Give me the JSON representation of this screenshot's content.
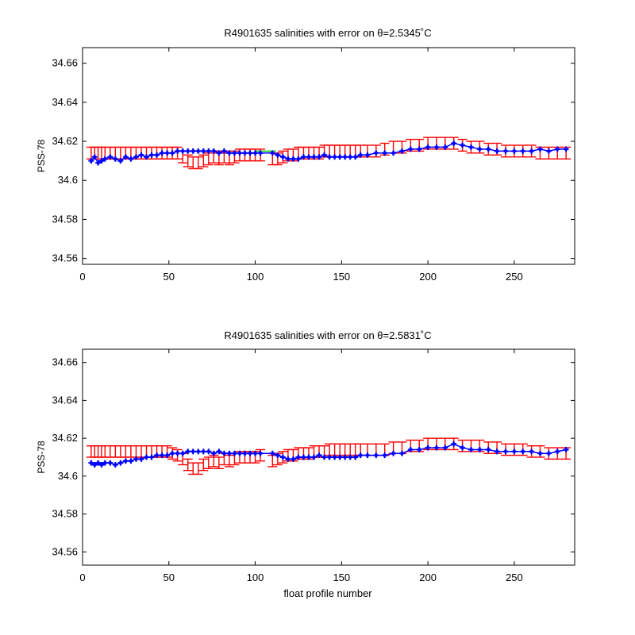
{
  "figure": {
    "xlabel": "float profile number"
  },
  "chart_data": [
    {
      "type": "scatter",
      "title": "R4901635 salinities with error on θ=2.5345˚C",
      "ylabel": "PSS-78",
      "xlabel": "",
      "xlim": [
        0,
        285
      ],
      "ylim": [
        34.557,
        34.668
      ],
      "xticks": [
        0,
        50,
        100,
        150,
        200,
        250
      ],
      "yticks": [
        34.56,
        34.58,
        34.6,
        34.62,
        34.64,
        34.66
      ],
      "ytick_labels": [
        "34.56",
        "34.58",
        "34.6",
        "34.62",
        "34.64",
        "34.66"
      ],
      "grid": false,
      "colors": {
        "measured": "#0000ff",
        "calibrated": "#ff0000",
        "mapped": "#00cc00"
      },
      "series": [
        {
          "role": "measured",
          "x": [
            5,
            7,
            9,
            11,
            13,
            16,
            19,
            22,
            25,
            28,
            31,
            34,
            37,
            40,
            43,
            46,
            49,
            52,
            55,
            58,
            61,
            64,
            67,
            70,
            73,
            76,
            79,
            82,
            85,
            88,
            91,
            94,
            97,
            100,
            103,
            110,
            113,
            116,
            119,
            122,
            125,
            128,
            131,
            134,
            137,
            140,
            143,
            146,
            149,
            152,
            155,
            158,
            161,
            165,
            170,
            175,
            180,
            185,
            190,
            195,
            200,
            205,
            210,
            215,
            220,
            225,
            230,
            235,
            240,
            245,
            250,
            255,
            260,
            265,
            270,
            275,
            280
          ],
          "y": [
            34.61,
            34.612,
            34.609,
            34.61,
            34.611,
            34.612,
            34.611,
            34.61,
            34.612,
            34.611,
            34.612,
            34.613,
            34.612,
            34.613,
            34.613,
            34.614,
            34.614,
            34.614,
            34.615,
            34.615,
            34.615,
            34.615,
            34.615,
            34.615,
            34.615,
            34.615,
            34.614,
            34.615,
            34.614,
            34.614,
            34.614,
            34.614,
            34.614,
            34.614,
            34.614,
            34.614,
            34.613,
            34.612,
            34.611,
            34.611,
            34.611,
            34.612,
            34.612,
            34.612,
            34.612,
            34.613,
            34.612,
            34.612,
            34.612,
            34.612,
            34.612,
            34.612,
            34.613,
            34.613,
            34.614,
            34.614,
            34.614,
            34.615,
            34.616,
            34.616,
            34.617,
            34.617,
            34.617,
            34.619,
            34.618,
            34.617,
            34.616,
            34.616,
            34.615,
            34.615,
            34.615,
            34.615,
            34.615,
            34.616,
            34.615,
            34.616,
            34.616
          ]
        },
        {
          "role": "calibrated",
          "x": [
            5,
            7,
            9,
            11,
            13,
            16,
            19,
            22,
            25,
            28,
            31,
            34,
            37,
            40,
            43,
            46,
            49,
            52,
            55,
            58,
            61,
            64,
            67,
            70,
            73,
            76,
            79,
            82,
            85,
            88,
            91,
            94,
            97,
            100,
            103,
            110,
            113,
            116,
            119,
            122,
            125,
            128,
            131,
            134,
            137,
            140,
            143,
            146,
            149,
            152,
            155,
            158,
            161,
            165,
            170,
            175,
            180,
            185,
            190,
            195,
            200,
            205,
            210,
            215,
            220,
            225,
            230,
            235,
            240,
            245,
            250,
            255,
            260,
            265,
            270,
            275,
            280
          ],
          "y": [
            34.614,
            34.614,
            34.614,
            34.614,
            34.614,
            34.614,
            34.614,
            34.614,
            34.614,
            34.614,
            34.614,
            34.614,
            34.614,
            34.614,
            34.614,
            34.614,
            34.614,
            34.614,
            34.614,
            34.612,
            34.61,
            34.609,
            34.609,
            34.61,
            34.611,
            34.612,
            34.611,
            34.612,
            34.611,
            34.612,
            34.613,
            34.613,
            34.613,
            34.613,
            34.613,
            34.611,
            34.611,
            34.612,
            34.613,
            34.613,
            34.614,
            34.614,
            34.614,
            34.614,
            34.614,
            34.615,
            34.615,
            34.615,
            34.615,
            34.615,
            34.615,
            34.615,
            34.615,
            34.615,
            34.615,
            34.616,
            34.617,
            34.617,
            34.618,
            34.618,
            34.619,
            34.619,
            34.619,
            34.619,
            34.618,
            34.617,
            34.617,
            34.616,
            34.616,
            34.615,
            34.615,
            34.615,
            34.615,
            34.614,
            34.614,
            34.614,
            34.614
          ],
          "err": 0.003
        },
        {
          "role": "mapped",
          "x": [
            100,
            112
          ],
          "y": [
            34.615,
            34.615
          ]
        }
      ]
    },
    {
      "type": "scatter",
      "title": "R4901635 salinities with error on θ=2.5831˚C",
      "ylabel": "PSS-78",
      "xlabel": "float profile number",
      "xlim": [
        0,
        285
      ],
      "ylim": [
        34.553,
        34.667
      ],
      "xticks": [
        0,
        50,
        100,
        150,
        200,
        250
      ],
      "yticks": [
        34.56,
        34.58,
        34.6,
        34.62,
        34.64,
        34.66
      ],
      "ytick_labels": [
        "34.56",
        "34.58",
        "34.6",
        "34.62",
        "34.64",
        "34.66"
      ],
      "grid": false,
      "colors": {
        "measured": "#0000ff",
        "calibrated": "#ff0000",
        "mapped": "#00cc00"
      },
      "series": [
        {
          "role": "measured",
          "x": [
            5,
            7,
            9,
            11,
            13,
            16,
            19,
            22,
            25,
            28,
            31,
            34,
            37,
            40,
            43,
            46,
            49,
            52,
            55,
            58,
            61,
            64,
            67,
            70,
            73,
            76,
            79,
            82,
            85,
            88,
            91,
            94,
            97,
            100,
            103,
            110,
            113,
            116,
            119,
            122,
            125,
            128,
            131,
            134,
            137,
            140,
            143,
            146,
            149,
            152,
            155,
            158,
            161,
            165,
            170,
            175,
            180,
            185,
            190,
            195,
            200,
            205,
            210,
            215,
            220,
            225,
            230,
            235,
            240,
            245,
            250,
            255,
            260,
            265,
            270,
            275,
            280
          ],
          "y": [
            34.607,
            34.606,
            34.607,
            34.606,
            34.607,
            34.607,
            34.606,
            34.607,
            34.608,
            34.608,
            34.609,
            34.609,
            34.61,
            34.61,
            34.611,
            34.611,
            34.611,
            34.612,
            34.612,
            34.612,
            34.613,
            34.613,
            34.613,
            34.613,
            34.613,
            34.612,
            34.613,
            34.612,
            34.612,
            34.612,
            34.612,
            34.612,
            34.612,
            34.612,
            34.612,
            34.612,
            34.611,
            34.61,
            34.609,
            34.609,
            34.61,
            34.61,
            34.61,
            34.61,
            34.611,
            34.61,
            34.61,
            34.61,
            34.61,
            34.61,
            34.61,
            34.61,
            34.611,
            34.611,
            34.611,
            34.611,
            34.612,
            34.612,
            34.614,
            34.614,
            34.615,
            34.615,
            34.615,
            34.617,
            34.615,
            34.614,
            34.614,
            34.614,
            34.613,
            34.613,
            34.613,
            34.613,
            34.613,
            34.612,
            34.612,
            34.613,
            34.614
          ]
        },
        {
          "role": "calibrated",
          "x": [
            5,
            7,
            9,
            11,
            13,
            16,
            19,
            22,
            25,
            28,
            31,
            34,
            37,
            40,
            43,
            46,
            49,
            52,
            55,
            58,
            61,
            64,
            67,
            70,
            73,
            76,
            79,
            82,
            85,
            88,
            91,
            94,
            97,
            100,
            103,
            110,
            113,
            116,
            119,
            122,
            125,
            128,
            131,
            134,
            137,
            140,
            143,
            146,
            149,
            152,
            155,
            158,
            161,
            165,
            170,
            175,
            180,
            185,
            190,
            195,
            200,
            205,
            210,
            215,
            220,
            225,
            230,
            235,
            240,
            245,
            250,
            255,
            260,
            265,
            270,
            275,
            280
          ],
          "y": [
            34.613,
            34.613,
            34.613,
            34.613,
            34.613,
            34.613,
            34.613,
            34.613,
            34.613,
            34.613,
            34.613,
            34.613,
            34.613,
            34.613,
            34.613,
            34.613,
            34.613,
            34.612,
            34.611,
            34.609,
            34.606,
            34.604,
            34.604,
            34.606,
            34.607,
            34.608,
            34.607,
            34.609,
            34.608,
            34.609,
            34.61,
            34.61,
            34.61,
            34.61,
            34.611,
            34.608,
            34.609,
            34.61,
            34.611,
            34.611,
            34.612,
            34.612,
            34.612,
            34.613,
            34.613,
            34.613,
            34.614,
            34.614,
            34.614,
            34.614,
            34.614,
            34.614,
            34.614,
            34.614,
            34.614,
            34.614,
            34.615,
            34.615,
            34.616,
            34.616,
            34.617,
            34.617,
            34.617,
            34.617,
            34.616,
            34.616,
            34.616,
            34.615,
            34.615,
            34.614,
            34.614,
            34.614,
            34.613,
            34.613,
            34.612,
            34.612,
            34.612
          ],
          "err": 0.003
        },
        {
          "role": "mapped",
          "x": [
            100,
            112
          ],
          "y": [
            34.612,
            34.612
          ]
        }
      ]
    }
  ]
}
